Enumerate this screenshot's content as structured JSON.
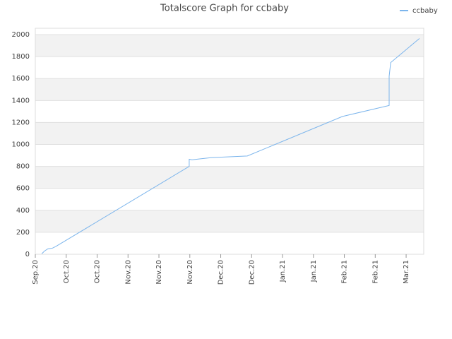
{
  "chart_data": {
    "type": "line",
    "title": "Totalscore Graph for ccbaby",
    "x": [
      0.21,
      0.3,
      0.41,
      0.55,
      0.66,
      4.98,
      4.98,
      5.07,
      5.37,
      5.71,
      6.86,
      9.94,
      11.45,
      11.45,
      11.5,
      12.43
    ],
    "series": [
      {
        "name": "ccbaby",
        "color": "#7cb5ec",
        "values": [
          5,
          30,
          50,
          55,
          70,
          800,
          865,
          860,
          870,
          880,
          895,
          1255,
          1355,
          1620,
          1745,
          1965
        ]
      }
    ],
    "xlim": [
      0,
      12.57
    ],
    "xticks": [
      {
        "value": 0,
        "label": "Sep.20"
      },
      {
        "value": 1,
        "label": "Oct.20"
      },
      {
        "value": 2,
        "label": "Oct.20"
      },
      {
        "value": 3,
        "label": "Nov.20"
      },
      {
        "value": 4,
        "label": "Nov.20"
      },
      {
        "value": 5,
        "label": "Nov.20"
      },
      {
        "value": 6,
        "label": "Dec.20"
      },
      {
        "value": 7,
        "label": "Dec.20"
      },
      {
        "value": 8,
        "label": "Jan.21"
      },
      {
        "value": 9,
        "label": "Jan.21"
      },
      {
        "value": 10,
        "label": "Feb.21"
      },
      {
        "value": 11,
        "label": "Feb.21"
      },
      {
        "value": 12,
        "label": "Mar.21"
      }
    ],
    "ylim": [
      0,
      2058
    ],
    "yticks": [
      0,
      200,
      400,
      600,
      800,
      1000,
      1200,
      1400,
      1600,
      1800,
      2000
    ],
    "grid": true,
    "legend": "top-right"
  }
}
